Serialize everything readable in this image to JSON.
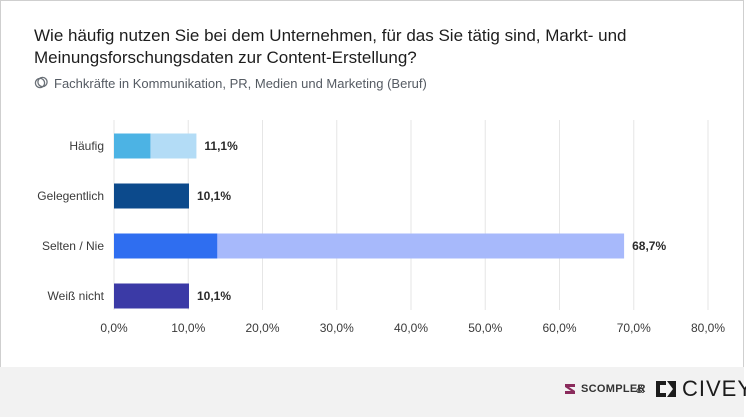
{
  "header": {
    "title": "Wie häufig nutzen Sie bei dem Unternehmen, für das Sie tätig sind, Markt- und Meinungsforschungsdaten zur Content-Erstellung?",
    "subtitle": "Fachkräfte in Kommunikation, PR, Medien und Marketing (Beruf)",
    "subtitle_icon": "filter-icon"
  },
  "chart_data": {
    "type": "bar",
    "orientation": "horizontal",
    "categories": [
      "Häufig",
      "Gelegentlich",
      "Selten / Nie",
      "Weiß nicht"
    ],
    "values": [
      11.1,
      10.1,
      68.7,
      10.1
    ],
    "value_labels": [
      "11,1%",
      "10,1%",
      "68,7%",
      "10,1%"
    ],
    "bar_colors": [
      {
        "main": "#4cb3e4",
        "light": "#b3dcf6",
        "inner_value": 4.9
      },
      {
        "main": "#0c4a8c",
        "light": null,
        "inner_value": null
      },
      {
        "main": "#2f6ef0",
        "light": "#a7b9fb",
        "inner_value": 13.9
      },
      {
        "main": "#3b3aa6",
        "light": null,
        "inner_value": null
      }
    ],
    "xlim": [
      0,
      80
    ],
    "xticks": [
      0,
      10,
      20,
      30,
      40,
      50,
      60,
      70,
      80
    ],
    "xtick_labels": [
      "0,0%",
      "10,0%",
      "20,0%",
      "30,0%",
      "40,0%",
      "50,0%",
      "60,0%",
      "70,0%",
      "80,0%"
    ],
    "grid": true
  },
  "footer": {
    "brand_left": "SCOMPLER",
    "separator": "&",
    "brand_right": "CIVEY"
  }
}
